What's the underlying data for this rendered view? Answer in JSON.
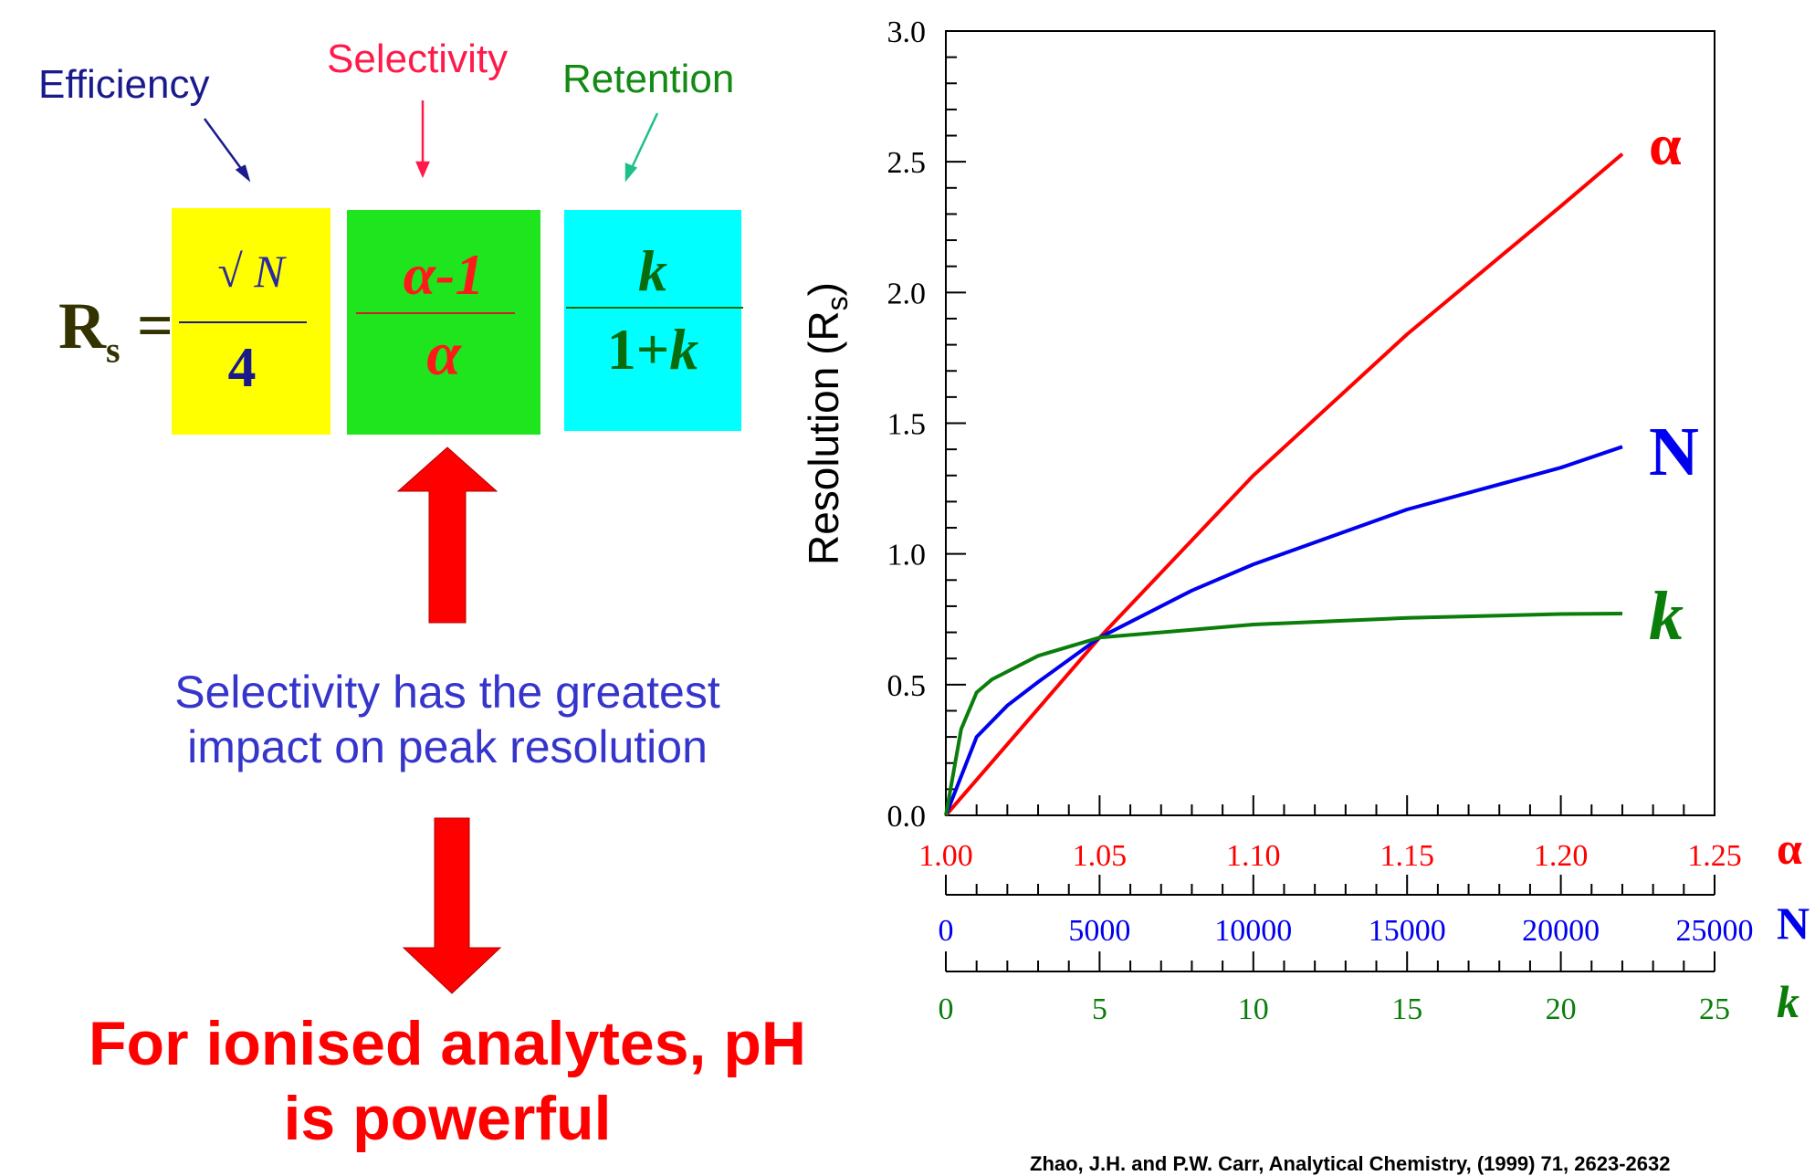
{
  "equation": {
    "lhs": "R",
    "lhs_sub": "s",
    "equals": "=",
    "efficiency": {
      "label": "Efficiency",
      "numerator": "√ N",
      "denominator": "4",
      "label_color": "#1a1a8c",
      "box_color": "#ffff00"
    },
    "selectivity": {
      "label": "Selectivity",
      "numerator": "α-1",
      "denominator": "α",
      "label_color": "#ff1a4a",
      "box_color": "#1ee51e"
    },
    "retention": {
      "label": "Retention",
      "numerator": "k",
      "denominator_prefix": "1+",
      "denominator_var": "k",
      "label_color": "#138a13",
      "box_color": "#00ffff"
    }
  },
  "impact_text": [
    "Selectivity has the greatest",
    "impact on peak resolution"
  ],
  "conclusion_text": [
    "For ionised analytes, pH",
    "is powerful"
  ],
  "citation": "Zhao, J.H. and P.W. Carr, Analytical Chemistry, (1999) 71, 2623-2632",
  "colors": {
    "alpha": "#ff0000",
    "N": "#0000ee",
    "k": "#0a7d0a",
    "arrow": "#ff0000"
  },
  "chart_data": {
    "type": "line",
    "ylabel": "Resolution (R",
    "ylabel_sub": "s",
    "ylabel_suffix": ")",
    "ylim": [
      0,
      3.0
    ],
    "y_ticks": [
      "0.0",
      "0.5",
      "1.0",
      "1.5",
      "2.0",
      "2.5",
      "3.0"
    ],
    "x_axes": [
      {
        "symbol": "α",
        "color": "#ff0000",
        "ticks": [
          "1.00",
          "1.05",
          "1.10",
          "1.15",
          "1.20",
          "1.25"
        ],
        "range": [
          1.0,
          1.25
        ]
      },
      {
        "symbol": "N",
        "color": "#0000ee",
        "ticks": [
          "0",
          "5000",
          "10000",
          "15000",
          "20000",
          "25000"
        ],
        "range": [
          0,
          25000
        ]
      },
      {
        "symbol": "k",
        "color": "#0a7d0a",
        "ticks": [
          "0",
          "5",
          "10",
          "15",
          "20",
          "25"
        ],
        "range": [
          0,
          25
        ]
      }
    ],
    "series": [
      {
        "name": "α",
        "color": "#ff0000",
        "axis": 0,
        "x": [
          1.0,
          1.05,
          1.1,
          1.15,
          1.2,
          1.22
        ],
        "y": [
          0.0,
          0.68,
          1.3,
          1.84,
          2.33,
          2.53
        ]
      },
      {
        "name": "N",
        "color": "#0000ee",
        "axis": 1,
        "x": [
          0,
          1000,
          2000,
          3000,
          5000,
          8000,
          10000,
          15000,
          20000,
          22000
        ],
        "y": [
          0.0,
          0.3,
          0.42,
          0.51,
          0.68,
          0.86,
          0.96,
          1.17,
          1.33,
          1.41
        ],
        "label": "N"
      },
      {
        "name": "k",
        "color": "#0a7d0a",
        "axis": 2,
        "x": [
          0,
          0.5,
          1,
          1.5,
          2,
          3,
          5,
          10,
          15,
          20,
          22
        ],
        "y": [
          0.0,
          0.33,
          0.47,
          0.52,
          0.55,
          0.61,
          0.68,
          0.73,
          0.755,
          0.77,
          0.772
        ],
        "label": "k"
      }
    ]
  }
}
